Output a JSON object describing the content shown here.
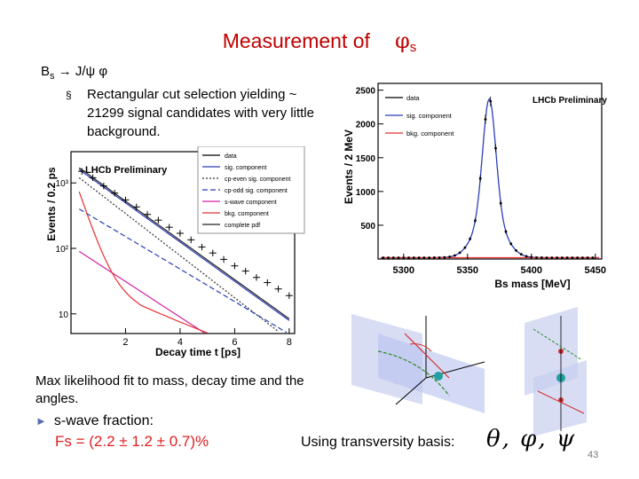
{
  "slide": {
    "title_text": "Measurement of",
    "title_phi": "φ",
    "title_sub": "s",
    "decay_B": "B",
    "decay_s": "s",
    "decay_rest": "→ J/ψ φ",
    "bullet_marker": "§",
    "bullet_text": "Rectangular cut selection yielding ~ 21299 signal candidates with very little background.",
    "fit_text": "Max likelihood fit to mass, decay time and the angles.",
    "swave_label": "s-wave fraction:",
    "fs_text": "Fs = (2.2 ± 1.2 ± 0.7)%",
    "basis_text": "Using transversity basis:",
    "angles_text": "θ, φ, ψ",
    "page_number": "43"
  },
  "colors": {
    "title": "#c00000",
    "fs": "#e02020",
    "signal_curve": "#2b3fb8",
    "background_curve": "#e83030"
  },
  "chart_data": [
    {
      "type": "line",
      "preliminary_label": "LHCb Preliminary",
      "xlabel": "Decay time t [ps]",
      "ylabel": "Events / 0.2 ps",
      "y_scale": "log",
      "x_ticks": [
        "2",
        "4",
        "6",
        "8"
      ],
      "y_ticks": [
        "10",
        "10²",
        "10³"
      ],
      "xlim": [
        0,
        8.2
      ],
      "ylim": [
        5,
        3000
      ],
      "legend": [
        "data",
        "sig. component",
        "cp-even sig. component",
        "cp-odd sig. component",
        "s-wave component",
        "bkg. component",
        "complete pdf"
      ],
      "legend_position": "top-right",
      "data_x": [
        0.4,
        0.8,
        1.2,
        1.6,
        2.0,
        2.4,
        2.8,
        3.2,
        3.6,
        4.0,
        4.4,
        4.8,
        5.2,
        5.6,
        6.0,
        6.4,
        6.8,
        7.2,
        7.6,
        8.0
      ],
      "data_y": [
        1500,
        1200,
        900,
        700,
        550,
        430,
        330,
        270,
        210,
        170,
        135,
        105,
        85,
        68,
        54,
        45,
        36,
        30,
        24,
        19
      ]
    },
    {
      "type": "line",
      "preliminary_label": "LHCb Preliminary",
      "xlabel": "Bs mass [MeV]",
      "ylabel": "Events / 2 MeV",
      "x_ticks": [
        "5300",
        "5350",
        "5400",
        "5450"
      ],
      "y_ticks": [
        "500",
        "1000",
        "1500",
        "2000",
        "2500"
      ],
      "xlim": [
        5280,
        5455
      ],
      "ylim": [
        0,
        2600
      ],
      "legend": [
        "data",
        "sig. component",
        "bkg. component"
      ],
      "legend_position": "top-right",
      "peak_x": 5367,
      "peak_y": 2350,
      "background_level": 20
    }
  ]
}
